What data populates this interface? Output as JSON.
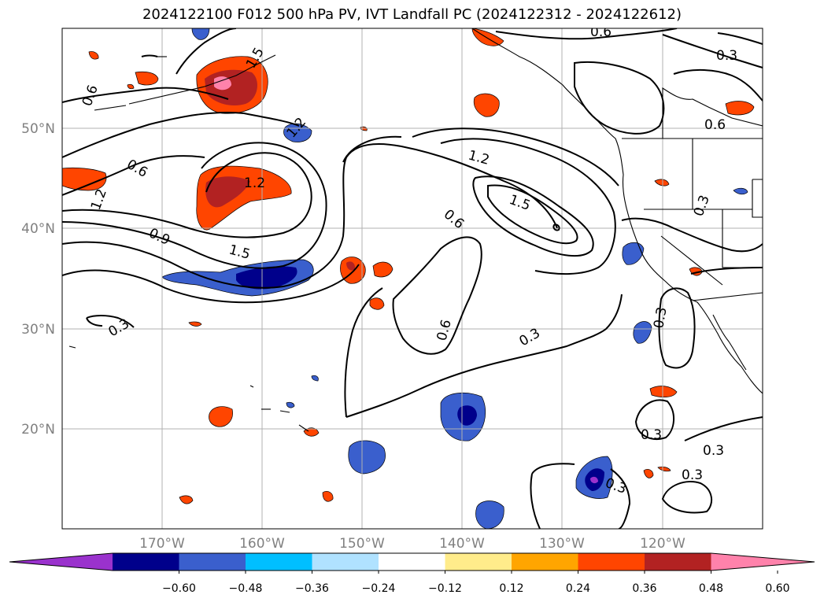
{
  "title": "2024122100 F012 500 hPa PV, IVT Landfall PC (2024122312 - 2024122612)",
  "map": {
    "lat_labels": [
      "50°N",
      "40°N",
      "30°N",
      "20°N"
    ],
    "lon_labels": [
      "170°W",
      "160°W",
      "150°W",
      "140°W",
      "130°W",
      "120°W"
    ],
    "grid": true,
    "contour_labels": [
      "0.6",
      "0.3",
      "0.6",
      "0.6",
      "1.2",
      "1.2",
      "1.5",
      "1.2",
      "1.2",
      "0.6",
      "1.5",
      "0.9",
      "1.5",
      "0.3",
      "0.3",
      "0.6",
      "0.3",
      "0.3",
      "0.3",
      "0.3",
      "0.3",
      "0.6",
      "0.3"
    ]
  },
  "colorbar": {
    "ticks": [
      "−0.60",
      "−0.48",
      "−0.36",
      "−0.24",
      "−0.12",
      "0.12",
      "0.24",
      "0.36",
      "0.48",
      "0.60"
    ],
    "colors": [
      "#9a32cd",
      "#00008b",
      "#3a5fcd",
      "#00bfff",
      "#b0e2ff",
      "#ffffff",
      "#ffec8b",
      "#ffa500",
      "#ff4500",
      "#b22222",
      "#ff82ab"
    ]
  }
}
